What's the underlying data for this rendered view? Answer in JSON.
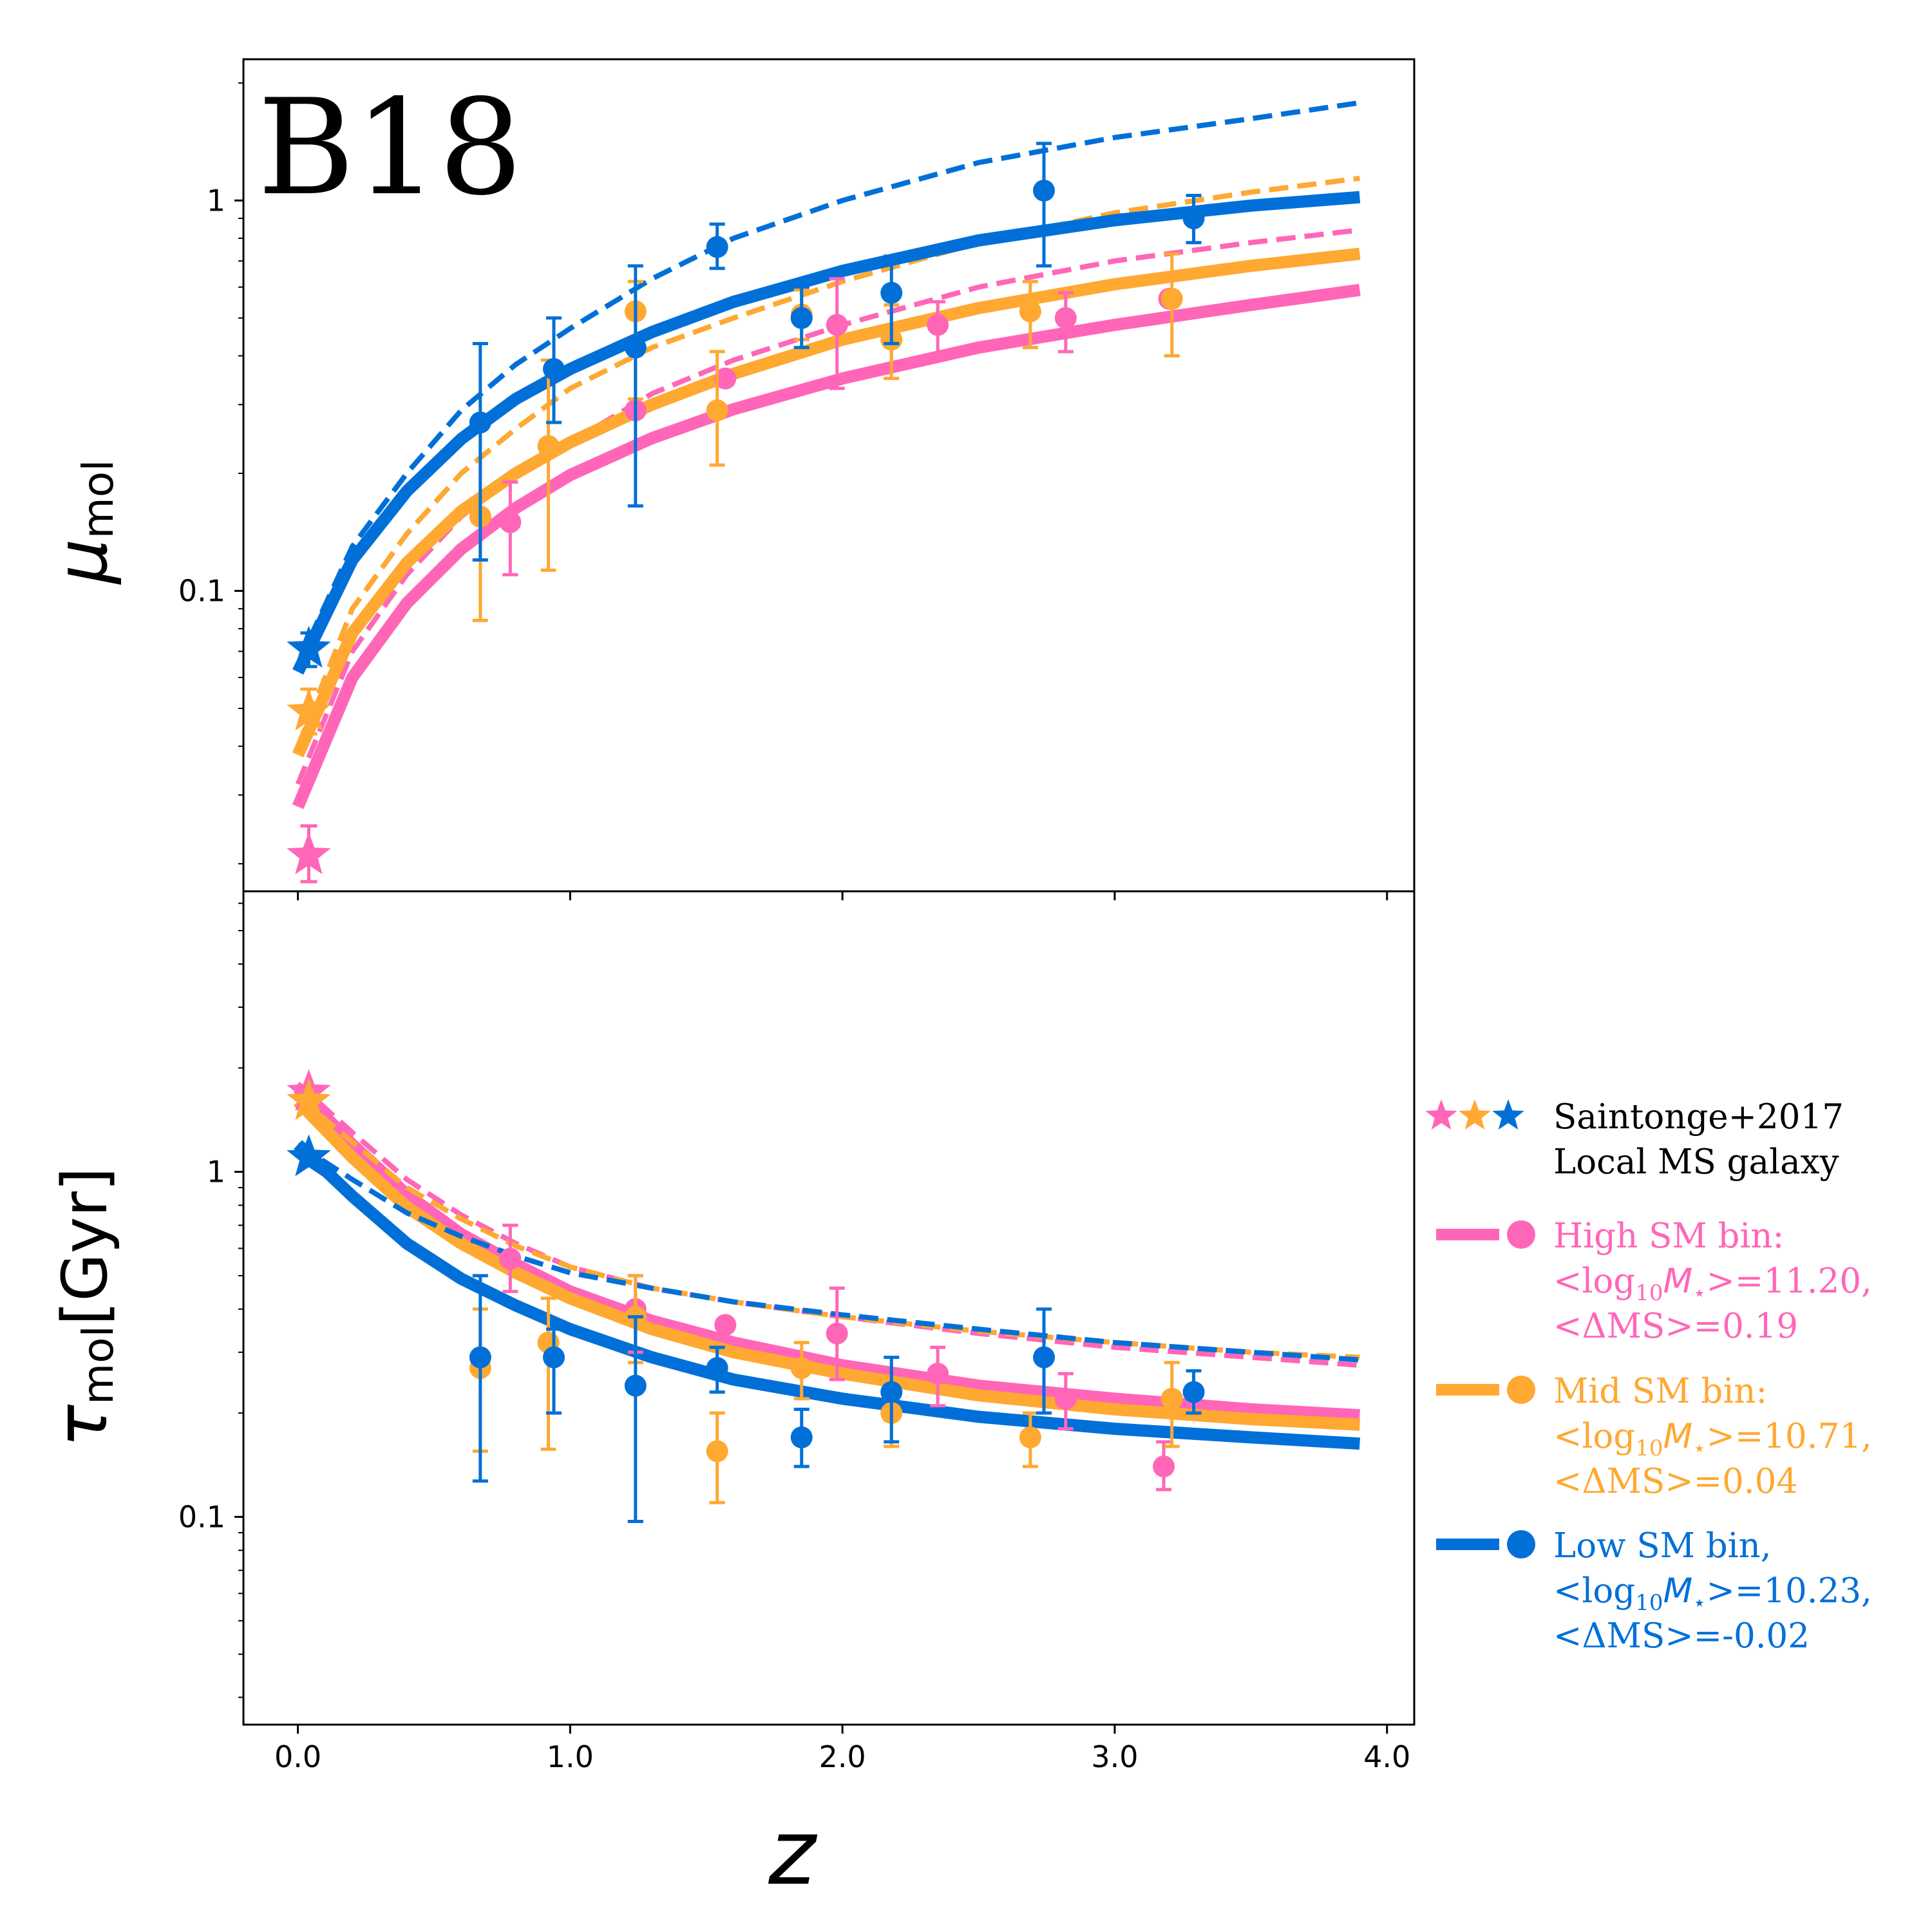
{
  "chart_data": [
    {
      "type": "line",
      "panel": "top",
      "title": "B18",
      "ylabel_main": "μ",
      "ylabel_sub": "mol",
      "yscale": "log",
      "ylim": [
        0.017,
        2.3
      ],
      "xlim": [
        -0.2,
        4.1
      ],
      "xticks": [
        0.0,
        1.0,
        2.0,
        3.0,
        4.0
      ],
      "yticks": [
        0.1,
        1
      ],
      "ytick_labels": [
        "0.1",
        "1"
      ],
      "colors": {
        "high": "#ff66b8",
        "mid": "#ffa832",
        "low": "#0070d8"
      },
      "curves": [
        {
          "name": "High SM fit",
          "color": "#ff66b8",
          "style": "solid",
          "x": [
            0.0,
            0.2,
            0.4,
            0.6,
            0.8,
            1.0,
            1.3,
            1.6,
            2.0,
            2.5,
            3.0,
            3.5,
            3.9
          ],
          "y": [
            0.028,
            0.06,
            0.093,
            0.128,
            0.163,
            0.198,
            0.246,
            0.292,
            0.35,
            0.42,
            0.48,
            0.54,
            0.59
          ]
        },
        {
          "name": "High SM fit (alt)",
          "color": "#ff66b8",
          "style": "dashed",
          "x": [
            0.0,
            0.2,
            0.4,
            0.6,
            0.8,
            1.0,
            1.3,
            1.6,
            2.0,
            2.5,
            3.0,
            3.5,
            3.9
          ],
          "y": [
            0.032,
            0.07,
            0.11,
            0.155,
            0.2,
            0.24,
            0.32,
            0.39,
            0.48,
            0.6,
            0.7,
            0.78,
            0.84
          ]
        },
        {
          "name": "Mid SM fit",
          "color": "#ffa832",
          "style": "solid",
          "x": [
            0.0,
            0.2,
            0.4,
            0.6,
            0.8,
            1.0,
            1.3,
            1.6,
            2.0,
            2.5,
            3.0,
            3.5,
            3.9
          ],
          "y": [
            0.038,
            0.078,
            0.118,
            0.16,
            0.2,
            0.24,
            0.3,
            0.36,
            0.44,
            0.53,
            0.61,
            0.68,
            0.73
          ]
        },
        {
          "name": "Mid SM fit (alt)",
          "color": "#ffa832",
          "style": "dashed",
          "x": [
            0.0,
            0.2,
            0.4,
            0.6,
            0.8,
            1.0,
            1.3,
            1.6,
            2.0,
            2.5,
            3.0,
            3.5,
            3.9
          ],
          "y": [
            0.04,
            0.09,
            0.14,
            0.2,
            0.26,
            0.33,
            0.42,
            0.5,
            0.62,
            0.78,
            0.93,
            1.05,
            1.14
          ]
        },
        {
          "name": "Low SM fit",
          "color": "#0070d8",
          "style": "solid",
          "x": [
            0.0,
            0.2,
            0.4,
            0.6,
            0.8,
            1.0,
            1.3,
            1.6,
            2.0,
            2.5,
            3.0,
            3.5,
            3.9
          ],
          "y": [
            0.062,
            0.12,
            0.18,
            0.245,
            0.31,
            0.37,
            0.46,
            0.55,
            0.66,
            0.79,
            0.89,
            0.97,
            1.02
          ]
        },
        {
          "name": "Low SM fit (alt)",
          "color": "#0070d8",
          "style": "dashed",
          "x": [
            0.0,
            0.2,
            0.4,
            0.6,
            0.8,
            1.0,
            1.3,
            1.6,
            2.0,
            2.5,
            3.0,
            3.5,
            3.9
          ],
          "y": [
            0.065,
            0.13,
            0.2,
            0.29,
            0.38,
            0.47,
            0.63,
            0.8,
            1.0,
            1.25,
            1.45,
            1.62,
            1.78
          ]
        }
      ],
      "points": [
        {
          "series": "High SM bin",
          "color": "#ff66b8",
          "x": [
            0.78,
            1.24,
            1.57,
            1.85,
            1.98,
            2.35,
            2.82,
            3.2
          ],
          "y": [
            0.15,
            0.29,
            0.35,
            0.5,
            0.48,
            0.48,
            0.5,
            0.56
          ],
          "yerr_low": [
            0.11,
            0.0,
            0.0,
            0.0,
            0.33,
            0.39,
            0.41,
            0.0
          ],
          "yerr_high": [
            0.19,
            0.0,
            0.0,
            0.0,
            0.63,
            0.55,
            0.58,
            0.0
          ]
        },
        {
          "series": "Mid SM bin",
          "color": "#ffa832",
          "x": [
            0.67,
            0.92,
            1.24,
            1.54,
            1.85,
            2.18,
            2.69,
            3.21
          ],
          "y": [
            0.155,
            0.235,
            0.52,
            0.29,
            0.51,
            0.44,
            0.52,
            0.56
          ],
          "yerr_low": [
            0.084,
            0.113,
            0.31,
            0.21,
            0.44,
            0.35,
            0.42,
            0.4
          ],
          "yerr_high": [
            0.27,
            0.39,
            0.62,
            0.41,
            0.59,
            0.54,
            0.62,
            0.73
          ]
        },
        {
          "series": "Low SM bin",
          "color": "#0070d8",
          "x": [
            0.67,
            0.94,
            1.24,
            1.54,
            1.85,
            2.18,
            2.74,
            3.29
          ],
          "y": [
            0.27,
            0.37,
            0.42,
            0.76,
            0.5,
            0.58,
            1.06,
            0.9
          ],
          "yerr_low": [
            0.12,
            0.27,
            0.165,
            0.67,
            0.42,
            0.43,
            0.68,
            0.78
          ],
          "yerr_high": [
            0.43,
            0.5,
            0.68,
            0.87,
            0.6,
            0.72,
            1.4,
            1.03
          ]
        }
      ],
      "stars": [
        {
          "color": "#ff66b8",
          "x": 0.04,
          "y": 0.021,
          "yerr": [
            0.018,
            0.025
          ]
        },
        {
          "color": "#ffa832",
          "x": 0.04,
          "y": 0.049,
          "yerr": [
            0.043,
            0.056
          ]
        },
        {
          "color": "#0070d8",
          "x": 0.04,
          "y": 0.071,
          "yerr": [
            0.064,
            0.078
          ]
        }
      ]
    },
    {
      "type": "line",
      "panel": "bottom",
      "ylabel_main": "τ",
      "ylabel_sub": "mol",
      "ylabel_unit": "[Gyr]",
      "xlabel": "z",
      "yscale": "log",
      "ylim": [
        0.025,
        6.5
      ],
      "xlim": [
        -0.2,
        4.1
      ],
      "xticks": [
        0.0,
        1.0,
        2.0,
        3.0,
        4.0
      ],
      "xtick_labels": [
        "0.0",
        "1.0",
        "2.0",
        "3.0",
        "4.0"
      ],
      "yticks": [
        0.1,
        1
      ],
      "ytick_labels": [
        "0.1",
        "1"
      ],
      "curves": [
        {
          "name": "High SM fit",
          "color": "#ff66b8",
          "style": "solid",
          "x": [
            0.0,
            0.2,
            0.4,
            0.6,
            0.8,
            1.0,
            1.3,
            1.6,
            2.0,
            2.5,
            3.0,
            3.5,
            3.9
          ],
          "y": [
            1.75,
            1.2,
            0.86,
            0.66,
            0.54,
            0.45,
            0.37,
            0.32,
            0.275,
            0.24,
            0.22,
            0.205,
            0.197
          ]
        },
        {
          "name": "High SM fit (alt)",
          "color": "#ff66b8",
          "style": "dashed",
          "x": [
            0.0,
            0.2,
            0.4,
            0.6,
            0.8,
            1.0,
            1.3,
            1.6,
            2.0,
            2.5,
            3.0,
            3.5,
            3.9
          ],
          "y": [
            1.8,
            1.3,
            0.95,
            0.75,
            0.62,
            0.53,
            0.46,
            0.42,
            0.38,
            0.34,
            0.31,
            0.29,
            0.275
          ]
        },
        {
          "name": "Mid SM fit",
          "color": "#ffa832",
          "style": "solid",
          "x": [
            0.0,
            0.2,
            0.4,
            0.6,
            0.8,
            1.0,
            1.3,
            1.6,
            2.0,
            2.5,
            3.0,
            3.5,
            3.9
          ],
          "y": [
            1.6,
            1.1,
            0.79,
            0.62,
            0.51,
            0.43,
            0.35,
            0.3,
            0.26,
            0.225,
            0.205,
            0.192,
            0.185
          ]
        },
        {
          "name": "Mid SM fit (alt)",
          "color": "#ffa832",
          "style": "dashed",
          "x": [
            0.0,
            0.2,
            0.4,
            0.6,
            0.8,
            1.0,
            1.3,
            1.6,
            2.0,
            2.5,
            3.0,
            3.5,
            3.9
          ],
          "y": [
            1.65,
            1.22,
            0.9,
            0.73,
            0.61,
            0.53,
            0.46,
            0.42,
            0.38,
            0.345,
            0.32,
            0.3,
            0.29
          ]
        },
        {
          "name": "Low SM fit",
          "color": "#0070d8",
          "style": "solid",
          "x": [
            0.0,
            0.2,
            0.4,
            0.6,
            0.8,
            1.0,
            1.3,
            1.6,
            2.0,
            2.5,
            3.0,
            3.5,
            3.9
          ],
          "y": [
            1.2,
            0.85,
            0.62,
            0.49,
            0.41,
            0.35,
            0.29,
            0.25,
            0.22,
            0.195,
            0.18,
            0.17,
            0.163
          ]
        },
        {
          "name": "Low SM fit (alt)",
          "color": "#0070d8",
          "style": "dashed",
          "x": [
            0.0,
            0.2,
            0.4,
            0.6,
            0.8,
            1.0,
            1.3,
            1.6,
            2.0,
            2.5,
            3.0,
            3.5,
            3.9
          ],
          "y": [
            1.2,
            0.95,
            0.76,
            0.65,
            0.57,
            0.51,
            0.46,
            0.42,
            0.385,
            0.35,
            0.32,
            0.3,
            0.285
          ]
        }
      ],
      "points": [
        {
          "series": "High SM bin",
          "color": "#ff66b8",
          "x": [
            0.78,
            1.24,
            1.57,
            1.98,
            2.35,
            2.82,
            3.18
          ],
          "y": [
            0.56,
            0.4,
            0.36,
            0.34,
            0.26,
            0.22,
            0.14
          ],
          "yerr_low": [
            0.45,
            0.3,
            0.0,
            0.25,
            0.21,
            0.18,
            0.12
          ],
          "yerr_high": [
            0.7,
            0.5,
            0.0,
            0.46,
            0.31,
            0.26,
            0.165
          ]
        },
        {
          "series": "Mid SM bin",
          "color": "#ffa832",
          "x": [
            0.67,
            0.92,
            1.24,
            1.54,
            1.85,
            2.18,
            2.69,
            3.21
          ],
          "y": [
            0.27,
            0.32,
            0.38,
            0.155,
            0.27,
            0.2,
            0.17,
            0.22
          ],
          "yerr_low": [
            0.155,
            0.157,
            0.28,
            0.11,
            0.22,
            0.16,
            0.14,
            0.16
          ],
          "yerr_high": [
            0.4,
            0.43,
            0.5,
            0.2,
            0.32,
            0.25,
            0.2,
            0.28
          ]
        },
        {
          "series": "Low SM bin",
          "color": "#0070d8",
          "x": [
            0.67,
            0.94,
            1.24,
            1.54,
            1.85,
            2.18,
            2.74,
            3.29
          ],
          "y": [
            0.29,
            0.29,
            0.24,
            0.27,
            0.17,
            0.23,
            0.29,
            0.23
          ],
          "yerr_low": [
            0.127,
            0.2,
            0.097,
            0.23,
            0.14,
            0.165,
            0.2,
            0.2
          ],
          "yerr_high": [
            0.5,
            0.35,
            0.38,
            0.31,
            0.205,
            0.29,
            0.4,
            0.265
          ]
        }
      ],
      "stars": [
        {
          "color": "#ff66b8",
          "x": 0.04,
          "y": 1.7
        },
        {
          "color": "#ffa832",
          "x": 0.04,
          "y": 1.6
        },
        {
          "color": "#0070d8",
          "x": 0.04,
          "y": 1.1
        }
      ]
    }
  ],
  "legend": {
    "entries": [
      {
        "kind": "stars",
        "colors": [
          "#ff66b8",
          "#ffa832",
          "#0070d8"
        ],
        "text_color": "#000000",
        "lines": [
          "Saintonge+2017",
          "Local MS galaxy"
        ]
      },
      {
        "kind": "line-dot",
        "color": "#ff66b8",
        "text_color": "#ff66b8",
        "line1": "High SM bin:",
        "mass_prefix": "<log",
        "mass_sub": "10",
        "mass_var": "M",
        "mass_star": "⋆",
        "mass_value": ">=11.20,",
        "line3": "<ΔMS>=0.19"
      },
      {
        "kind": "line-dot",
        "color": "#ffa832",
        "text_color": "#ffa832",
        "line1": "Mid SM bin:",
        "mass_prefix": "<log",
        "mass_sub": "10",
        "mass_var": "M",
        "mass_star": "⋆",
        "mass_value": ">=10.71,",
        "line3": "<ΔMS>=0.04"
      },
      {
        "kind": "line-dot",
        "color": "#0070d8",
        "text_color": "#0070d8",
        "line1": "Low SM bin,",
        "mass_prefix": "<log",
        "mass_sub": "10",
        "mass_var": "M",
        "mass_star": "⋆",
        "mass_value": ">=10.23,",
        "line3": "<ΔMS>=-0.02"
      }
    ]
  }
}
